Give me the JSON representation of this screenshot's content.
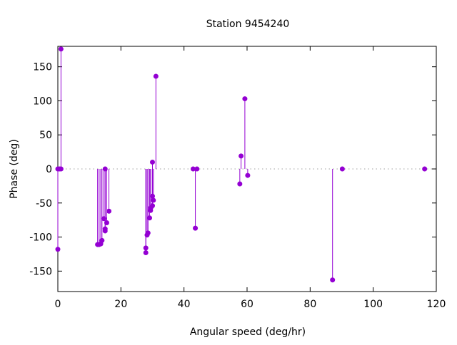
{
  "chart_data": {
    "type": "scatter",
    "style": "impulses with points",
    "title": "Station 9454240",
    "xlabel": "Angular speed (deg/hr)",
    "ylabel": "Phase (deg)",
    "xlim": [
      0,
      120
    ],
    "ylim": [
      -180,
      180
    ],
    "xticks": [
      0,
      20,
      40,
      60,
      80,
      100,
      120
    ],
    "yticks": [
      -150,
      -100,
      -50,
      0,
      50,
      100,
      150
    ],
    "zero_line": true,
    "grid": false,
    "color": "#9400d3",
    "points": [
      {
        "x": 0.0,
        "y": 0
      },
      {
        "x": 0.0,
        "y": -118
      },
      {
        "x": 0.5,
        "y": 0
      },
      {
        "x": 1.0,
        "y": 176
      },
      {
        "x": 1.0,
        "y": 0
      },
      {
        "x": 12.6,
        "y": -111
      },
      {
        "x": 13.1,
        "y": -111
      },
      {
        "x": 13.6,
        "y": -110
      },
      {
        "x": 14.0,
        "y": -105
      },
      {
        "x": 14.6,
        "y": -73
      },
      {
        "x": 15.0,
        "y": 0
      },
      {
        "x": 15.0,
        "y": -88
      },
      {
        "x": 15.0,
        "y": -91
      },
      {
        "x": 15.5,
        "y": -79
      },
      {
        "x": 16.2,
        "y": -62
      },
      {
        "x": 27.9,
        "y": -116
      },
      {
        "x": 27.9,
        "y": -123
      },
      {
        "x": 28.3,
        "y": -97
      },
      {
        "x": 28.6,
        "y": -94
      },
      {
        "x": 29.1,
        "y": -72
      },
      {
        "x": 29.4,
        "y": -61
      },
      {
        "x": 29.5,
        "y": -57
      },
      {
        "x": 30.0,
        "y": -54
      },
      {
        "x": 30.0,
        "y": -40
      },
      {
        "x": 30.3,
        "y": -46
      },
      {
        "x": 30.0,
        "y": 10
      },
      {
        "x": 31.1,
        "y": 136
      },
      {
        "x": 42.9,
        "y": 0
      },
      {
        "x": 44.1,
        "y": 0
      },
      {
        "x": 43.6,
        "y": -87
      },
      {
        "x": 57.7,
        "y": -22
      },
      {
        "x": 58.1,
        "y": 19
      },
      {
        "x": 59.3,
        "y": 103
      },
      {
        "x": 60.2,
        "y": -9.5
      },
      {
        "x": 87.1,
        "y": -163
      },
      {
        "x": 90.2,
        "y": 0
      },
      {
        "x": 116.3,
        "y": 0
      }
    ]
  }
}
